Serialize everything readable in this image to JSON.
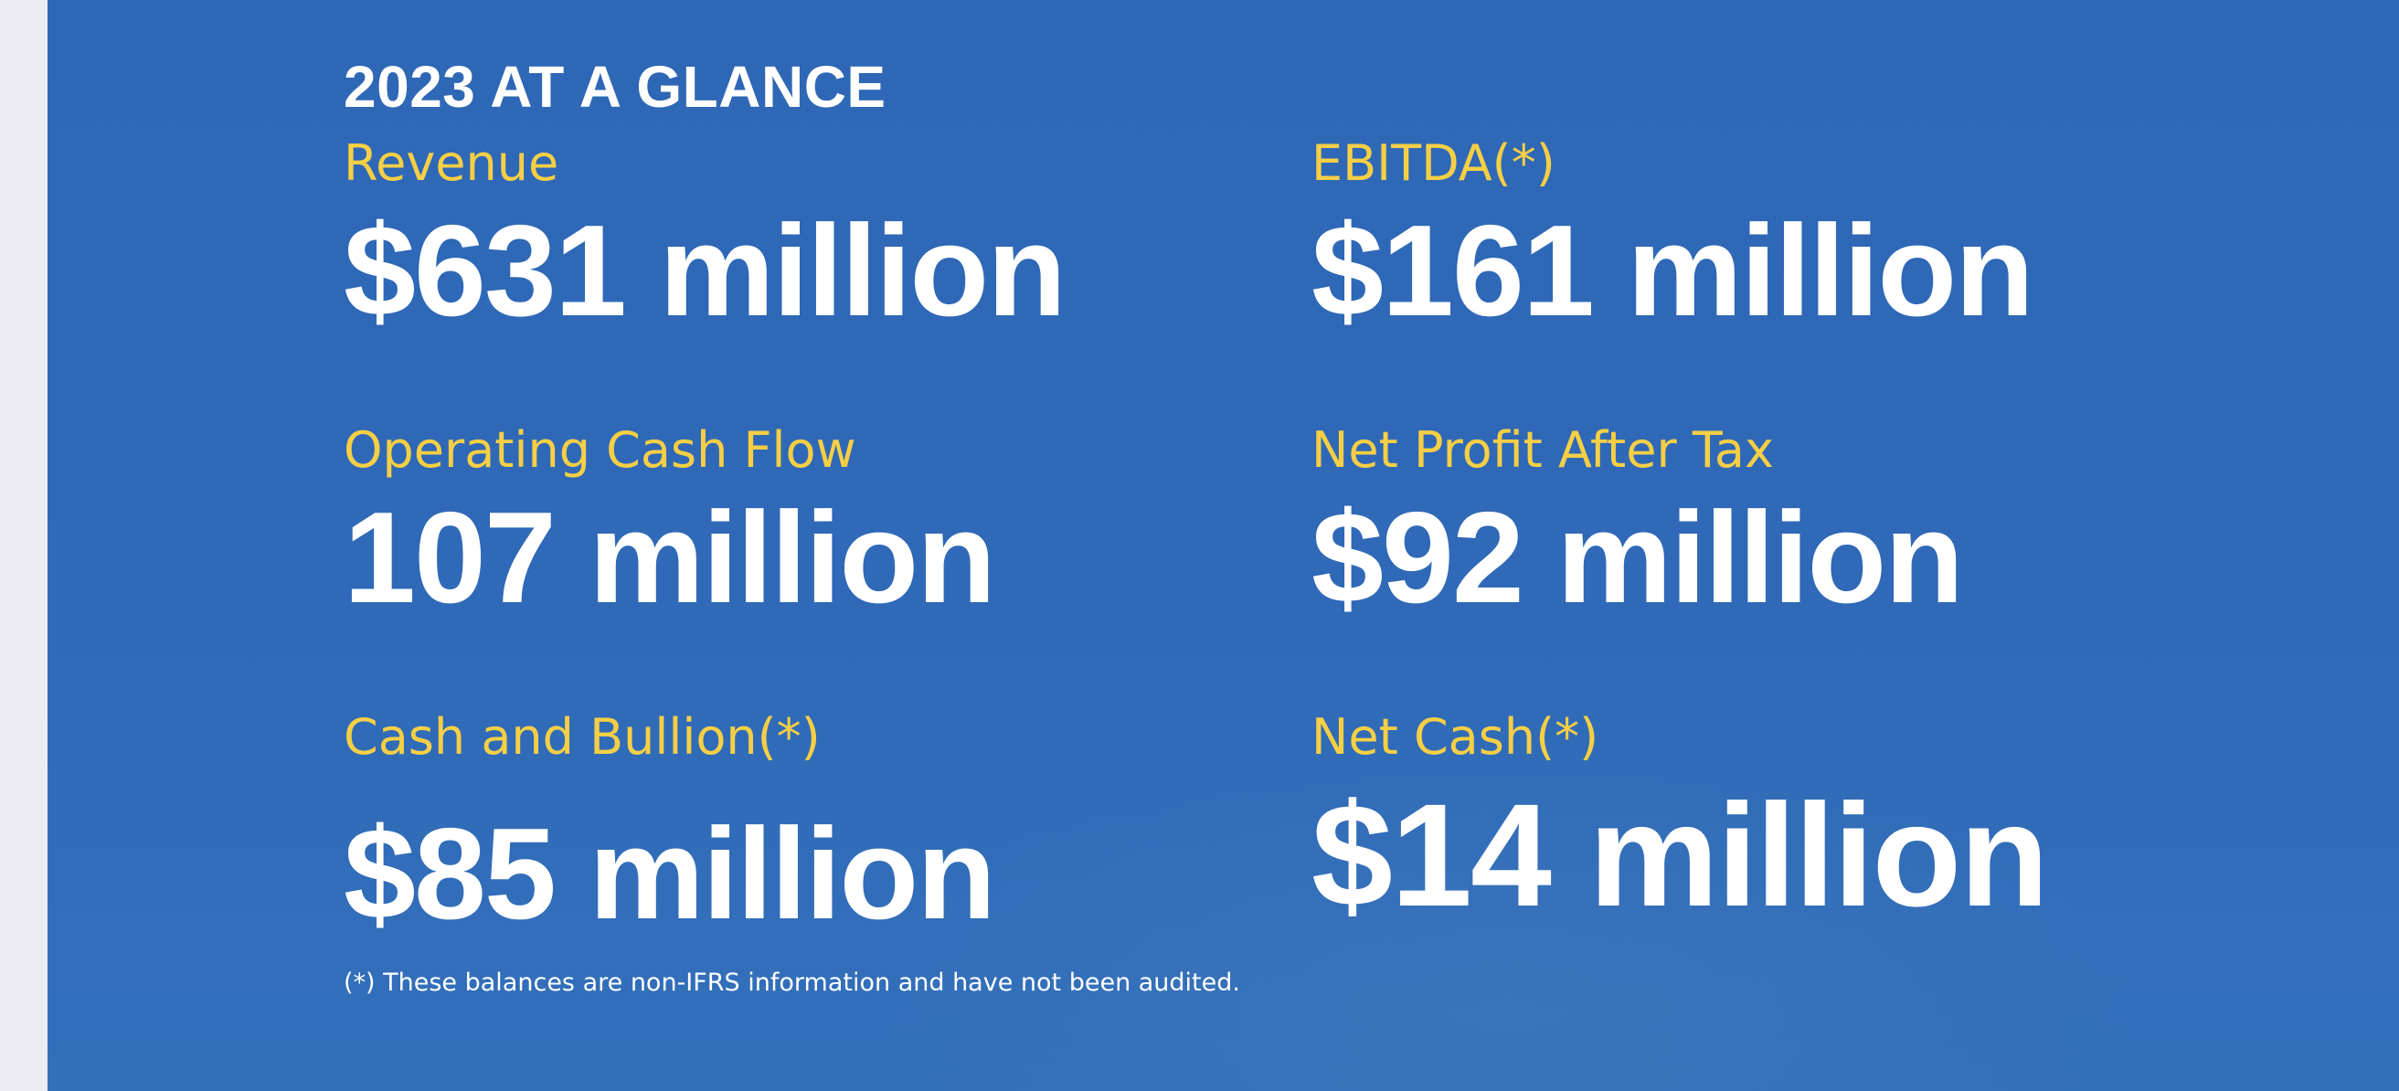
{
  "heading": "2023 AT A GLANCE",
  "metrics": {
    "revenue": {
      "label": "Revenue",
      "value": "$631 million"
    },
    "ebitda": {
      "label": "EBITDA(*)",
      "value": "$161 million"
    },
    "operating_cash_flow": {
      "label": "Operating Cash Flow",
      "value": "107 million"
    },
    "net_profit_after_tax": {
      "label": "Net Profit After Tax",
      "value": "$92 million"
    },
    "cash_and_bullion": {
      "label": "Cash and Bullion(*)",
      "value": "$85 million"
    },
    "net_cash": {
      "label": "Net Cash(*)",
      "value": "$14 million"
    }
  },
  "footnote": "(*) These balances are non-IFRS information and have not been audited.",
  "colors": {
    "background": "#2f69b7",
    "label": "#f6cf45",
    "value": "#ffffff"
  }
}
